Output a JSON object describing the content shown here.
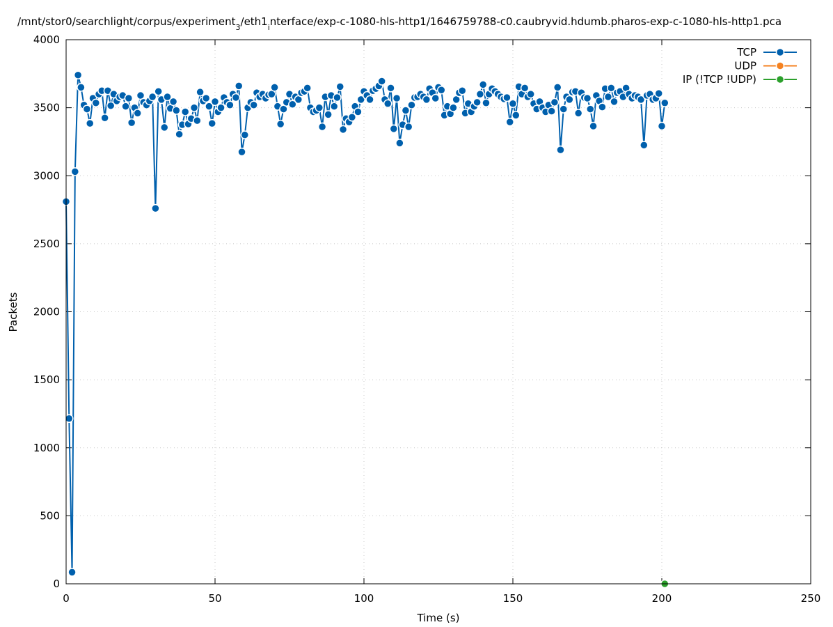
{
  "chart_data": {
    "type": "line",
    "title": [
      "/mnt/stor0/searchlight/corpus/experiment",
      "3",
      "/eth1",
      "i",
      "nterface/exp-c-1080-hls-http1/1646759788-c0.caubryvid.hdumb.pharos-exp-c-1080-hls-http1.pca"
    ],
    "xlabel": "Time (s)",
    "ylabel": "Packets",
    "xlim": [
      0,
      250
    ],
    "ylim": [
      0,
      4000
    ],
    "xticks": [
      0,
      50,
      100,
      150,
      200,
      250
    ],
    "yticks": [
      0,
      500,
      1000,
      1500,
      2000,
      2500,
      3000,
      3500,
      4000
    ],
    "grid": true,
    "legend": "top-right",
    "series": [
      {
        "name": "TCP",
        "color": "#0060ad",
        "x": [
          0,
          1,
          2,
          3,
          4,
          5,
          6,
          7,
          8,
          9,
          10,
          11,
          12,
          13,
          14,
          15,
          16,
          17,
          18,
          19,
          20,
          21,
          22,
          23,
          24,
          25,
          26,
          27,
          28,
          29,
          30,
          31,
          32,
          33,
          34,
          35,
          36,
          37,
          38,
          39,
          40,
          41,
          42,
          43,
          44,
          45,
          46,
          47,
          48,
          49,
          50,
          51,
          52,
          53,
          54,
          55,
          56,
          57,
          58,
          59,
          60,
          61,
          62,
          63,
          64,
          65,
          66,
          67,
          68,
          69,
          70,
          71,
          72,
          73,
          74,
          75,
          76,
          77,
          78,
          79,
          80,
          81,
          82,
          83,
          84,
          85,
          86,
          87,
          88,
          89,
          90,
          91,
          92,
          93,
          94,
          95,
          96,
          97,
          98,
          99,
          100,
          101,
          102,
          103,
          104,
          105,
          106,
          107,
          108,
          109,
          110,
          111,
          112,
          113,
          114,
          115,
          116,
          117,
          118,
          119,
          120,
          121,
          122,
          123,
          124,
          125,
          126,
          127,
          128,
          129,
          130,
          131,
          132,
          133,
          134,
          135,
          136,
          137,
          138,
          139,
          140,
          141,
          142,
          143,
          144,
          145,
          146,
          147,
          148,
          149,
          150,
          151,
          152,
          153,
          154,
          155,
          156,
          157,
          158,
          159,
          160,
          161,
          162,
          163,
          164,
          165,
          166,
          167,
          168,
          169,
          170,
          171,
          172,
          173,
          174,
          175,
          176,
          177,
          178,
          179,
          180,
          181,
          182,
          183,
          184,
          185,
          186,
          187,
          188,
          189,
          190,
          191,
          192,
          193,
          194,
          195,
          196,
          197,
          198,
          199,
          200,
          201
        ],
        "values": [
          2810,
          1215,
          85,
          3030,
          3740,
          3650,
          3520,
          3490,
          3385,
          3570,
          3535,
          3600,
          3625,
          3425,
          3625,
          3515,
          3600,
          3550,
          3580,
          3590,
          3510,
          3570,
          3390,
          3500,
          3460,
          3590,
          3540,
          3520,
          3550,
          3580,
          2760,
          3620,
          3560,
          3355,
          3580,
          3495,
          3545,
          3480,
          3305,
          3375,
          3470,
          3380,
          3420,
          3500,
          3405,
          3615,
          3550,
          3570,
          3510,
          3385,
          3545,
          3470,
          3500,
          3575,
          3540,
          3520,
          3600,
          3575,
          3660,
          3175,
          3300,
          3500,
          3540,
          3520,
          3610,
          3580,
          3600,
          3570,
          3595,
          3600,
          3650,
          3510,
          3380,
          3490,
          3540,
          3600,
          3525,
          3580,
          3560,
          3610,
          3620,
          3645,
          3500,
          3470,
          3480,
          3500,
          3360,
          3580,
          3450,
          3590,
          3510,
          3575,
          3655,
          3340,
          3420,
          3395,
          3430,
          3510,
          3470,
          3560,
          3620,
          3590,
          3560,
          3625,
          3640,
          3660,
          3695,
          3560,
          3530,
          3645,
          3345,
          3570,
          3240,
          3375,
          3480,
          3360,
          3520,
          3575,
          3580,
          3600,
          3580,
          3560,
          3640,
          3610,
          3570,
          3650,
          3630,
          3445,
          3510,
          3455,
          3500,
          3560,
          3610,
          3625,
          3460,
          3530,
          3470,
          3510,
          3540,
          3600,
          3670,
          3535,
          3600,
          3640,
          3620,
          3600,
          3580,
          3565,
          3575,
          3395,
          3530,
          3445,
          3655,
          3600,
          3645,
          3580,
          3600,
          3530,
          3490,
          3545,
          3500,
          3470,
          3520,
          3475,
          3540,
          3650,
          3190,
          3490,
          3580,
          3560,
          3615,
          3620,
          3460,
          3610,
          3575,
          3570,
          3490,
          3365,
          3590,
          3550,
          3505,
          3640,
          3580,
          3645,
          3545,
          3610,
          3620,
          3580,
          3645,
          3600,
          3570,
          3590,
          3580,
          3560,
          3225,
          3590,
          3600,
          3560,
          3570,
          3605,
          3365,
          3535
        ]
      },
      {
        "name": "UDP",
        "color": "#f58220",
        "x": [],
        "values": []
      },
      {
        "name": "IP (!TCP  !UDP)",
        "color": "#2ca02c",
        "x": [
          201
        ],
        "values": [
          0
        ]
      }
    ]
  }
}
